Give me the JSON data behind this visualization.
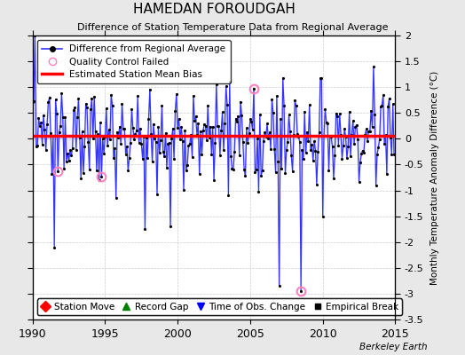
{
  "title": "HAMEDAN FOROUDGAH",
  "subtitle": "Difference of Station Temperature Data from Regional Average",
  "ylabel_right": "Monthly Temperature Anomaly Difference (°C)",
  "xlim": [
    1990,
    2015
  ],
  "ylim": [
    -3.5,
    2.0
  ],
  "yticks": [
    -3.5,
    -3,
    -2.5,
    -2,
    -1.5,
    -1,
    -0.5,
    0,
    0.5,
    1,
    1.5,
    2
  ],
  "xticks": [
    1990,
    1995,
    2000,
    2005,
    2010,
    2015
  ],
  "mean_bias": 0.05,
  "line_color": "#3333ff",
  "line_fill_color": "#aaaaff",
  "bias_color": "red",
  "background_color": "#e8e8e8",
  "plot_bg_color": "#ffffff",
  "grid_color": "#cccccc",
  "qc_failed_color": "#ff80c0",
  "time_of_obs_years": [
    2007.25,
    2008.5
  ],
  "qc_failed_years": [
    1991.75,
    1994.75,
    2005.25,
    2008.5
  ],
  "berkeley_earth_label": "Berkeley Earth",
  "seed": 137
}
